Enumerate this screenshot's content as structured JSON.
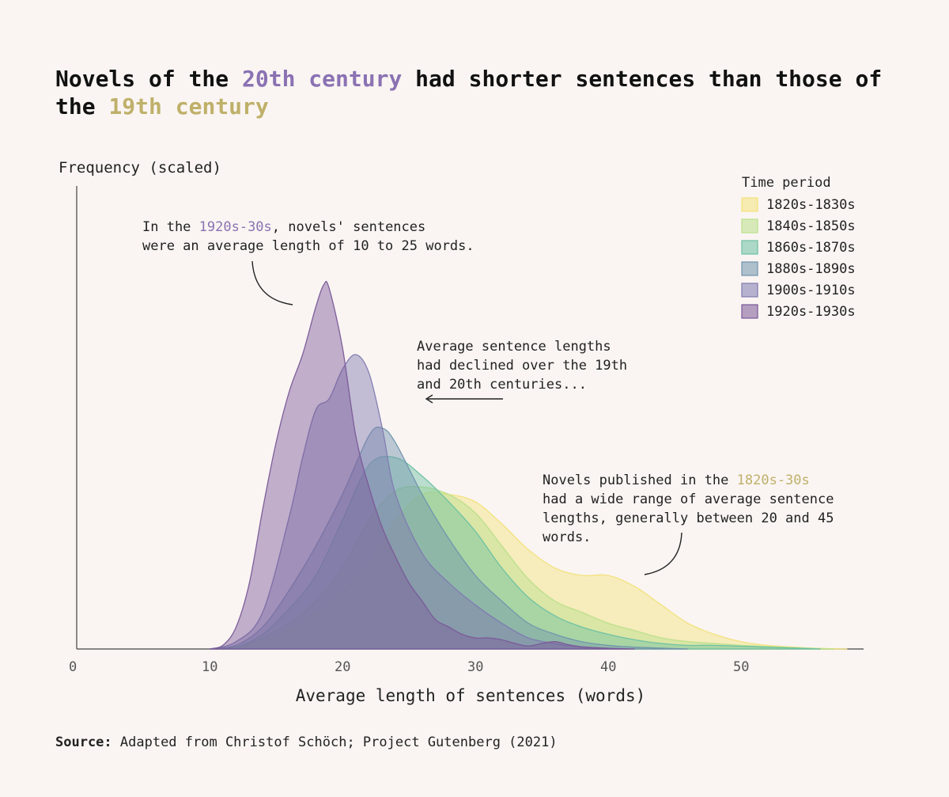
{
  "title": {
    "part1": "Novels of the ",
    "highlight1": "20th century",
    "part2": " had shorter sentences than those of the ",
    "highlight2": "19th century"
  },
  "colors": {
    "highlight_20th": "#8a72b3",
    "highlight_19th": "#bfb06a",
    "background": "#faf5f2"
  },
  "source": {
    "label": "Source:",
    "text": " Adapted from Christof Schöch; Project Gutenberg (2021)"
  },
  "chart_data": {
    "type": "area",
    "ylabel": "Frequency (scaled)",
    "xlabel": "Average length of sentences (words)",
    "xlim": [
      0,
      59
    ],
    "ylim": [
      0,
      1.0
    ],
    "x_ticks": [
      0,
      10,
      20,
      30,
      40,
      50
    ],
    "legend": {
      "title": "Time period",
      "position": "top-right"
    },
    "series": [
      {
        "name": "1820s-1830s",
        "color": "#f2e27a",
        "points": [
          [
            10,
            0
          ],
          [
            12,
            0.005
          ],
          [
            14,
            0.02
          ],
          [
            16,
            0.05
          ],
          [
            18,
            0.1
          ],
          [
            20,
            0.15
          ],
          [
            22,
            0.23
          ],
          [
            24,
            0.35
          ],
          [
            26,
            0.42
          ],
          [
            28,
            0.42
          ],
          [
            30,
            0.4
          ],
          [
            32,
            0.34
          ],
          [
            34,
            0.27
          ],
          [
            36,
            0.22
          ],
          [
            38,
            0.2
          ],
          [
            40,
            0.2
          ],
          [
            42,
            0.17
          ],
          [
            44,
            0.12
          ],
          [
            46,
            0.07
          ],
          [
            48,
            0.04
          ],
          [
            50,
            0.02
          ],
          [
            52,
            0.01
          ],
          [
            55,
            0.003
          ],
          [
            58,
            0
          ]
        ]
      },
      {
        "name": "1840s-1850s",
        "color": "#b9df8a",
        "points": [
          [
            10,
            0
          ],
          [
            12,
            0.005
          ],
          [
            14,
            0.03
          ],
          [
            16,
            0.07
          ],
          [
            18,
            0.13
          ],
          [
            20,
            0.22
          ],
          [
            22,
            0.35
          ],
          [
            24,
            0.43
          ],
          [
            26,
            0.44
          ],
          [
            28,
            0.42
          ],
          [
            30,
            0.37
          ],
          [
            32,
            0.28
          ],
          [
            34,
            0.19
          ],
          [
            36,
            0.13
          ],
          [
            38,
            0.1
          ],
          [
            40,
            0.07
          ],
          [
            42,
            0.05
          ],
          [
            44,
            0.03
          ],
          [
            46,
            0.02
          ],
          [
            48,
            0.015
          ],
          [
            50,
            0.01
          ],
          [
            53,
            0.005
          ],
          [
            57,
            0
          ]
        ]
      },
      {
        "name": "1860s-1870s",
        "color": "#6cc0a4",
        "points": [
          [
            10,
            0
          ],
          [
            12,
            0.005
          ],
          [
            14,
            0.04
          ],
          [
            16,
            0.11
          ],
          [
            18,
            0.2
          ],
          [
            20,
            0.35
          ],
          [
            22,
            0.5
          ],
          [
            24,
            0.52
          ],
          [
            26,
            0.47
          ],
          [
            28,
            0.4
          ],
          [
            30,
            0.32
          ],
          [
            32,
            0.22
          ],
          [
            34,
            0.14
          ],
          [
            36,
            0.09
          ],
          [
            38,
            0.06
          ],
          [
            40,
            0.04
          ],
          [
            42,
            0.025
          ],
          [
            44,
            0.015
          ],
          [
            46,
            0.01
          ],
          [
            48,
            0.01
          ],
          [
            52,
            0.005
          ],
          [
            56,
            0
          ]
        ]
      },
      {
        "name": "1880s-1890s",
        "color": "#6f93ad",
        "points": [
          [
            10,
            0
          ],
          [
            12,
            0.01
          ],
          [
            14,
            0.06
          ],
          [
            16,
            0.16
          ],
          [
            18,
            0.28
          ],
          [
            20,
            0.42
          ],
          [
            22,
            0.58
          ],
          [
            23,
            0.6
          ],
          [
            24,
            0.56
          ],
          [
            26,
            0.42
          ],
          [
            28,
            0.3
          ],
          [
            30,
            0.2
          ],
          [
            32,
            0.13
          ],
          [
            34,
            0.07
          ],
          [
            36,
            0.04
          ],
          [
            38,
            0.02
          ],
          [
            40,
            0.01
          ],
          [
            42,
            0.005
          ],
          [
            46,
            0
          ]
        ]
      },
      {
        "name": "1900s-1910s",
        "color": "#7e7ab0",
        "points": [
          [
            10,
            0
          ],
          [
            12,
            0.02
          ],
          [
            14,
            0.1
          ],
          [
            16,
            0.36
          ],
          [
            17,
            0.52
          ],
          [
            18,
            0.65
          ],
          [
            19,
            0.68
          ],
          [
            20,
            0.76
          ],
          [
            21,
            0.8
          ],
          [
            22,
            0.75
          ],
          [
            23,
            0.6
          ],
          [
            24,
            0.42
          ],
          [
            26,
            0.26
          ],
          [
            28,
            0.18
          ],
          [
            30,
            0.12
          ],
          [
            32,
            0.07
          ],
          [
            34,
            0.03
          ],
          [
            36,
            0.015
          ],
          [
            38,
            0.005
          ],
          [
            42,
            0
          ]
        ]
      },
      {
        "name": "1920s-1930s",
        "color": "#7a5898",
        "points": [
          [
            10,
            0
          ],
          [
            11,
            0.01
          ],
          [
            12,
            0.06
          ],
          [
            13,
            0.18
          ],
          [
            14,
            0.38
          ],
          [
            15,
            0.56
          ],
          [
            16,
            0.7
          ],
          [
            17,
            0.8
          ],
          [
            18,
            0.93
          ],
          [
            18.6,
            0.99
          ],
          [
            19,
            0.98
          ],
          [
            20,
            0.82
          ],
          [
            21,
            0.58
          ],
          [
            22,
            0.44
          ],
          [
            23,
            0.33
          ],
          [
            24,
            0.25
          ],
          [
            25,
            0.18
          ],
          [
            26,
            0.13
          ],
          [
            27,
            0.08
          ],
          [
            28,
            0.06
          ],
          [
            29,
            0.04
          ],
          [
            30,
            0.03
          ],
          [
            31,
            0.03
          ],
          [
            32,
            0.025
          ],
          [
            33,
            0.015
          ],
          [
            34,
            0.008
          ],
          [
            35,
            0.015
          ],
          [
            36,
            0.02
          ],
          [
            37,
            0.012
          ],
          [
            38,
            0.006
          ],
          [
            40,
            0.002
          ],
          [
            42,
            0
          ]
        ]
      }
    ],
    "annotations": [
      {
        "lines": [
          "In the ",
          "1920s-30s",
          ", novels' sentences",
          "were an average length of 10 to 25 words."
        ],
        "highlight_color": "#8a72b3"
      },
      {
        "lines": [
          "Average sentence lengths",
          "had declined over the 19th",
          "and 20th centuries..."
        ]
      },
      {
        "lines": [
          "Novels published in the ",
          "1820s-30s",
          "had a wide range of average sentence",
          "lengths, generally between 20 and 45",
          "words."
        ],
        "highlight_color": "#bfb06a"
      }
    ]
  }
}
